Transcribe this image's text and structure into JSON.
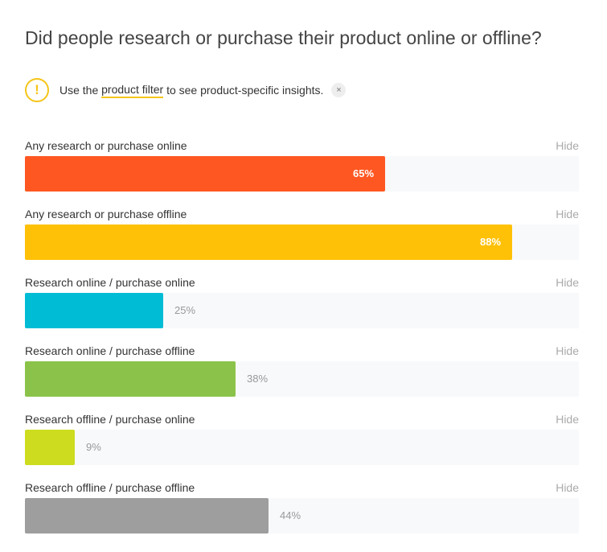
{
  "title": "Did people research or purchase their product online or offline?",
  "notice": {
    "icon": "exclamation-icon",
    "text_before": "Use the ",
    "link": "product filter",
    "text_after": " to see product-specific insights.",
    "close_glyph": "×"
  },
  "hide_label": "Hide",
  "chart_data": {
    "type": "bar",
    "orientation": "horizontal",
    "xlim": [
      0,
      100
    ],
    "unit": "%",
    "categories": [
      "Any research or purchase online",
      "Any research or purchase offline",
      "Research online / purchase online",
      "Research online / purchase offline",
      "Research offline / purchase online",
      "Research offline / purchase offline"
    ],
    "values": [
      65,
      88,
      25,
      38,
      9,
      44
    ],
    "value_labels": [
      "65%",
      "88%",
      "25%",
      "38%",
      "9%",
      "44%"
    ],
    "colors": [
      "#ff5722",
      "#ffc107",
      "#00bcd4",
      "#8bc34a",
      "#cddc1f",
      "#9e9e9e"
    ]
  },
  "colors": {
    "accent": "#f5c518",
    "track": "#f8f9fb",
    "muted_text": "#aaaaaa"
  }
}
